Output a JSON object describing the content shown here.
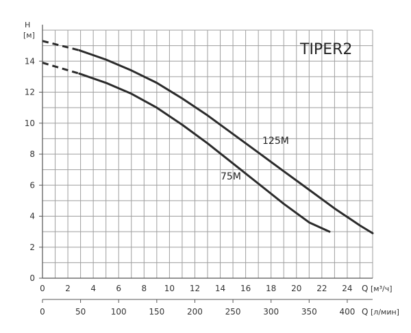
{
  "chart_data": {
    "type": "line",
    "title": "TIPER2",
    "y_axis": {
      "label_symbol": "H",
      "label_unit": "[м]",
      "range": [
        0,
        16
      ],
      "ticks": [
        0,
        2,
        4,
        6,
        8,
        10,
        12,
        14
      ],
      "grid": true
    },
    "x_axis_primary": {
      "symbol": "Q",
      "unit": "[м³/ч]",
      "range": [
        0,
        26
      ],
      "ticks": [
        0,
        2,
        4,
        6,
        8,
        10,
        12,
        14,
        16,
        18,
        20,
        22,
        24
      ],
      "grid": true
    },
    "x_axis_secondary": {
      "symbol": "Q",
      "unit": "[л/мин]",
      "ticks": [
        0,
        50,
        100,
        150,
        200,
        250,
        300,
        350,
        400
      ]
    },
    "series": [
      {
        "name": "125M",
        "dashed_x": [
          0,
          2.9
        ],
        "x": [
          0,
          2.9,
          5,
          7,
          9,
          11,
          13,
          15,
          17,
          19,
          21,
          23,
          25,
          26
        ],
        "y": [
          15.3,
          14.7,
          14.1,
          13.4,
          12.6,
          11.6,
          10.5,
          9.3,
          8.1,
          6.9,
          5.7,
          4.5,
          3.4,
          2.9
        ]
      },
      {
        "name": "75M",
        "dashed_x": [
          0,
          2.9
        ],
        "x": [
          0,
          2.9,
          5,
          7,
          9,
          11,
          13,
          15,
          17,
          19,
          21,
          22.6
        ],
        "y": [
          13.9,
          13.2,
          12.6,
          11.9,
          11.0,
          9.9,
          8.7,
          7.4,
          6.1,
          4.8,
          3.6,
          3.0
        ]
      }
    ]
  },
  "colors": {
    "grid": "#9e9e9e",
    "axis": "#555555",
    "curve": "#2b2b2b"
  }
}
